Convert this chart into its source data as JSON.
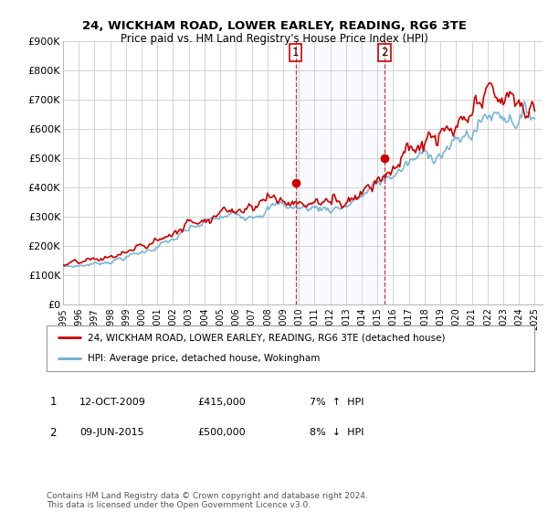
{
  "title": "24, WICKHAM ROAD, LOWER EARLEY, READING, RG6 3TE",
  "subtitle": "Price paid vs. HM Land Registry's House Price Index (HPI)",
  "background_color": "#ffffff",
  "plot_bg_color": "#ffffff",
  "grid_color": "#cccccc",
  "hpi_color": "#6baed6",
  "price_color": "#cc0000",
  "sale1_x": 2009.79,
  "sale1_y": 415000,
  "sale1_label": "1",
  "sale2_x": 2015.44,
  "sale2_y": 500000,
  "sale2_label": "2",
  "legend_line1": "24, WICKHAM ROAD, LOWER EARLEY, READING, RG6 3TE (detached house)",
  "legend_line2": "HPI: Average price, detached house, Wokingham",
  "footnote": "Contains HM Land Registry data © Crown copyright and database right 2024.\nThis data is licensed under the Open Government Licence v3.0.",
  "vline1_x": 2009.79,
  "vline2_x": 2015.44,
  "xmin": 1995,
  "xmax": 2025.5,
  "ylim": [
    0,
    900000
  ],
  "yticks": [
    0,
    100000,
    200000,
    300000,
    400000,
    500000,
    600000,
    700000,
    800000,
    900000
  ],
  "ytick_labels": [
    "£0",
    "£100K",
    "£200K",
    "£300K",
    "£400K",
    "£500K",
    "£600K",
    "£700K",
    "£800K",
    "£900K"
  ]
}
